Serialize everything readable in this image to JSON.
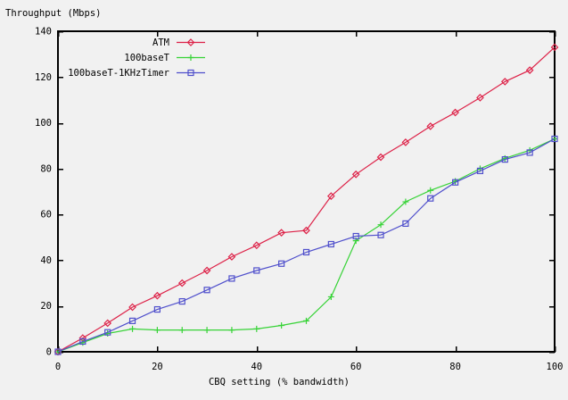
{
  "colors": {
    "background": "#f1f1f1",
    "axis": "#000000",
    "text": "#000000",
    "atm_red": "#dd2248",
    "basetgreen": "#37d337",
    "timer_blue": "#5050cc"
  },
  "chart_data": {
    "type": "line",
    "xlabel": "CBQ setting (% bandwidth)",
    "ylabel": "Throughput (Mbps)",
    "xlim": [
      0,
      100
    ],
    "ylim": [
      0,
      140
    ],
    "xticks": [
      0,
      20,
      40,
      60,
      80,
      100
    ],
    "yticks": [
      0,
      20,
      40,
      60,
      80,
      100,
      120,
      140
    ],
    "grid": false,
    "legend_position": "top-inside-left",
    "x": [
      0,
      5,
      10,
      15,
      20,
      25,
      30,
      35,
      40,
      45,
      50,
      55,
      60,
      65,
      70,
      75,
      80,
      85,
      90,
      95,
      100
    ],
    "series": [
      {
        "name": "ATM",
        "color": "#dd2248",
        "marker": "diamond",
        "values": [
          0,
          6,
          12.5,
          19.5,
          24.5,
          30,
          35.5,
          41.5,
          46.5,
          52,
          53,
          68,
          77.5,
          85,
          91.5,
          98.5,
          104.5,
          111,
          118,
          123,
          133
        ]
      },
      {
        "name": "100baseT",
        "color": "#37d337",
        "marker": "plus",
        "values": [
          0,
          4,
          8,
          10,
          9.5,
          9.5,
          9.5,
          9.5,
          10,
          11.5,
          13.5,
          24,
          48.5,
          55.5,
          65.5,
          70.5,
          74.5,
          80,
          84.5,
          88,
          93
        ]
      },
      {
        "name": "100baseT-1KHzTimer",
        "color": "#5050cc",
        "marker": "square",
        "values": [
          0,
          4.5,
          8.5,
          13.5,
          18.5,
          22,
          27,
          32,
          35.5,
          38.5,
          43.5,
          47,
          50.5,
          51,
          56,
          67,
          74,
          79,
          84,
          87,
          93
        ]
      }
    ]
  }
}
